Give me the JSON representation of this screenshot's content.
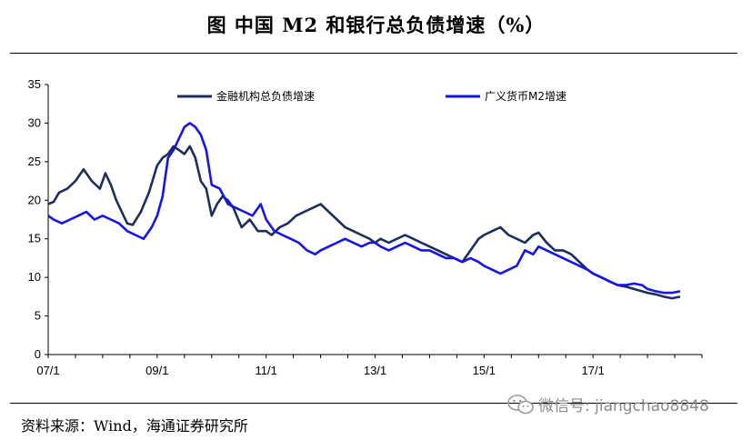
{
  "header": {
    "title": "图    中国 M2 和银行总负债增速（%）"
  },
  "footer": {
    "source": "资料来源：Wind，海通证券研究所"
  },
  "watermark": {
    "text": "微信号: jiangchao8848",
    "icon": "wechat-icon"
  },
  "colors": {
    "series1": "#1c2f5c",
    "series2": "#1515e6"
  },
  "chart_data": {
    "type": "line",
    "title": "中国 M2 和银行总负债增速（%）",
    "xlabel": "",
    "ylabel": "",
    "ylim": [
      0,
      35
    ],
    "yticks": [
      0,
      5,
      10,
      15,
      20,
      25,
      30,
      35
    ],
    "xlim": [
      2007.0,
      2019.0
    ],
    "xtick_values": [
      2007.0,
      2009.0,
      2011.0,
      2013.0,
      2015.0,
      2017.0
    ],
    "xtick_labels": [
      "07/1",
      "09/1",
      "11/1",
      "13/1",
      "15/1",
      "17/1"
    ],
    "grid": false,
    "legend_position": "top",
    "series": [
      {
        "name": "金融机构总负债增速",
        "color": "#1c2f5c",
        "x": [
          2007.0,
          2007.1,
          2007.2,
          2007.35,
          2007.5,
          2007.65,
          2007.8,
          2007.95,
          2008.05,
          2008.15,
          2008.25,
          2008.35,
          2008.45,
          2008.55,
          2008.7,
          2008.85,
          2009.0,
          2009.1,
          2009.2,
          2009.3,
          2009.4,
          2009.5,
          2009.6,
          2009.7,
          2009.8,
          2009.9,
          2010.0,
          2010.1,
          2010.2,
          2010.3,
          2010.4,
          2010.55,
          2010.7,
          2010.85,
          2011.0,
          2011.1,
          2011.25,
          2011.4,
          2011.55,
          2011.7,
          2011.85,
          2012.0,
          2012.15,
          2012.3,
          2012.45,
          2012.6,
          2012.75,
          2012.9,
          2013.0,
          2013.1,
          2013.25,
          2013.4,
          2013.55,
          2013.7,
          2013.85,
          2014.0,
          2014.15,
          2014.3,
          2014.45,
          2014.6,
          2014.75,
          2014.9,
          2015.0,
          2015.15,
          2015.3,
          2015.45,
          2015.6,
          2015.75,
          2015.9,
          2016.0,
          2016.15,
          2016.3,
          2016.45,
          2016.6,
          2016.75,
          2016.9,
          2017.0,
          2017.15,
          2017.3,
          2017.45,
          2017.6,
          2017.75,
          2017.9,
          2018.0,
          2018.15,
          2018.3,
          2018.45,
          2018.6
        ],
        "values": [
          19.5,
          19.8,
          21.0,
          21.5,
          22.5,
          24.0,
          22.5,
          21.5,
          23.5,
          22.0,
          20.0,
          18.5,
          17.0,
          16.8,
          18.5,
          21.0,
          24.5,
          25.5,
          26.0,
          27.0,
          26.5,
          26.0,
          27.0,
          25.5,
          22.5,
          21.5,
          18.0,
          19.5,
          20.5,
          20.0,
          19.0,
          16.5,
          17.5,
          16.0,
          16.0,
          15.5,
          16.5,
          17.0,
          18.0,
          18.5,
          19.0,
          19.5,
          18.5,
          17.5,
          16.5,
          16.0,
          15.5,
          15.0,
          14.5,
          15.0,
          14.5,
          15.0,
          15.5,
          15.0,
          14.5,
          14.0,
          13.5,
          13.0,
          12.5,
          12.0,
          13.5,
          15.0,
          15.5,
          16.0,
          16.5,
          15.5,
          15.0,
          14.5,
          15.5,
          15.8,
          14.5,
          13.5,
          13.5,
          13.0,
          12.0,
          11.0,
          10.5,
          10.0,
          9.5,
          9.0,
          8.8,
          8.5,
          8.2,
          8.0,
          7.8,
          7.5,
          7.3,
          7.5
        ]
      },
      {
        "name": "广义货币M2增速",
        "color": "#1515e6",
        "x": [
          2007.0,
          2007.1,
          2007.25,
          2007.4,
          2007.55,
          2007.7,
          2007.85,
          2008.0,
          2008.15,
          2008.3,
          2008.45,
          2008.6,
          2008.75,
          2008.9,
          2009.0,
          2009.1,
          2009.2,
          2009.3,
          2009.4,
          2009.5,
          2009.6,
          2009.7,
          2009.8,
          2009.9,
          2010.0,
          2010.15,
          2010.3,
          2010.45,
          2010.6,
          2010.75,
          2010.9,
          2011.0,
          2011.15,
          2011.3,
          2011.45,
          2011.6,
          2011.75,
          2011.9,
          2012.0,
          2012.15,
          2012.3,
          2012.45,
          2012.6,
          2012.75,
          2012.9,
          2013.0,
          2013.1,
          2013.25,
          2013.4,
          2013.55,
          2013.7,
          2013.85,
          2014.0,
          2014.15,
          2014.3,
          2014.45,
          2014.6,
          2014.75,
          2014.9,
          2015.0,
          2015.15,
          2015.3,
          2015.45,
          2015.6,
          2015.75,
          2015.9,
          2016.0,
          2016.15,
          2016.3,
          2016.45,
          2016.6,
          2016.75,
          2016.9,
          2017.0,
          2017.15,
          2017.3,
          2017.45,
          2017.6,
          2017.75,
          2017.9,
          2018.0,
          2018.15,
          2018.3,
          2018.45,
          2018.6
        ],
        "values": [
          18.0,
          17.5,
          17.0,
          17.5,
          18.0,
          18.5,
          17.5,
          18.0,
          17.5,
          17.0,
          16.0,
          15.5,
          15.0,
          16.5,
          18.0,
          20.5,
          25.5,
          26.5,
          28.0,
          29.5,
          30.0,
          29.5,
          28.5,
          26.5,
          22.0,
          21.5,
          19.5,
          19.0,
          18.5,
          18.0,
          19.5,
          17.5,
          16.0,
          15.5,
          15.0,
          14.5,
          13.5,
          13.0,
          13.5,
          14.0,
          14.5,
          15.0,
          14.5,
          14.0,
          14.5,
          14.5,
          14.0,
          13.5,
          14.0,
          14.5,
          14.0,
          13.5,
          13.5,
          13.0,
          12.5,
          12.5,
          12.0,
          12.5,
          12.0,
          11.5,
          11.0,
          10.5,
          11.0,
          11.5,
          13.5,
          13.0,
          14.0,
          13.5,
          13.0,
          12.5,
          12.0,
          11.5,
          11.0,
          10.5,
          10.0,
          9.5,
          9.0,
          9.0,
          9.2,
          9.0,
          8.5,
          8.2,
          8.0,
          8.0,
          8.2
        ]
      }
    ]
  }
}
